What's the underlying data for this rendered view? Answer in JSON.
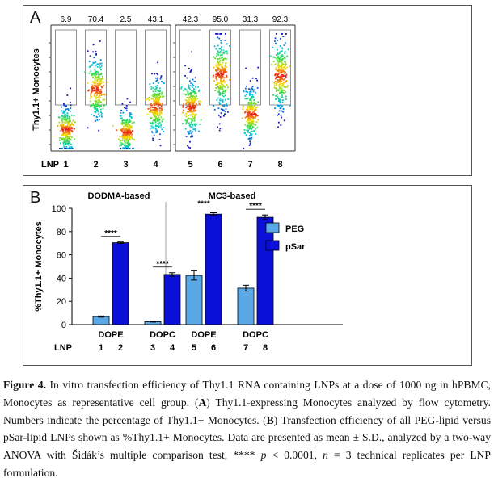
{
  "panel_a": {
    "letter": "A",
    "y_label": "Thy1.1+ Monocytes",
    "lnp_label": "LNP",
    "groups": [
      {
        "lnps": [
          "1",
          "2",
          "3",
          "4"
        ],
        "percentages": [
          "6.9",
          "70.4",
          "2.5",
          "43.1"
        ],
        "gate_fraction": [
          0.069,
          0.704,
          0.025,
          0.431
        ]
      },
      {
        "lnps": [
          "5",
          "6",
          "7",
          "8"
        ],
        "percentages": [
          "42.3",
          "95.0",
          "31.3",
          "92.3"
        ],
        "gate_fraction": [
          0.423,
          0.95,
          0.313,
          0.923
        ]
      }
    ]
  },
  "panel_b": {
    "letter": "B",
    "group_titles": [
      "DODMA-based",
      "MC3-based"
    ],
    "significance": "****",
    "legend": [
      {
        "label": "PEG",
        "color": "#5aa9e6"
      },
      {
        "label": "pSar",
        "color": "#0a10d8"
      }
    ],
    "lnp_label": "LNP"
  },
  "chart_data": {
    "type": "bar",
    "ylabel": "%Thy1.1+ Monocytes",
    "ylim": [
      0,
      100
    ],
    "yticks": [
      "0",
      "20",
      "40",
      "60",
      "80",
      "100"
    ],
    "categories": [
      "DOPE",
      "DOPC",
      "DOPE",
      "DOPC"
    ],
    "lnp_numbers": [
      [
        "1",
        "2"
      ],
      [
        "3",
        "4"
      ],
      [
        "5",
        "6"
      ],
      [
        "7",
        "8"
      ]
    ],
    "series": [
      {
        "name": "PEG",
        "values": [
          6.9,
          2.5,
          42.3,
          31.3
        ],
        "errors": [
          0.5,
          0.3,
          4.0,
          2.5
        ]
      },
      {
        "name": "pSar",
        "values": [
          70.4,
          43.1,
          95.0,
          92.3
        ],
        "errors": [
          0.6,
          1.5,
          1.2,
          2.0
        ]
      }
    ]
  },
  "caption": {
    "label": "Figure 4.",
    "text_1": " In vitro transfection efficiency of Thy1.1 RNA containing LNPs at a dose of 1000 ng in hPBMC, Monocytes as representative cell group. (",
    "a_ref": "A",
    "text_2": ") Thy1.1-expressing Monocytes analyzed by flow cytometry. Numbers indicate the percentage of Thy1.1+ Monocytes. (",
    "b_ref": "B",
    "text_3": ") Transfection efficiency of all PEG-lipid versus pSar-lipid LNPs shown as %Thy1.1+ Monocytes. Data are presented as mean ± S.D., analyzed by a two-way ANOVA with Šidák’s multiple comparison test, **** ",
    "p_symbol": "p",
    "text_4": " < 0.0001, ",
    "n_symbol": "n",
    "text_5": " = 3 technical replicates per LNP formulation."
  }
}
